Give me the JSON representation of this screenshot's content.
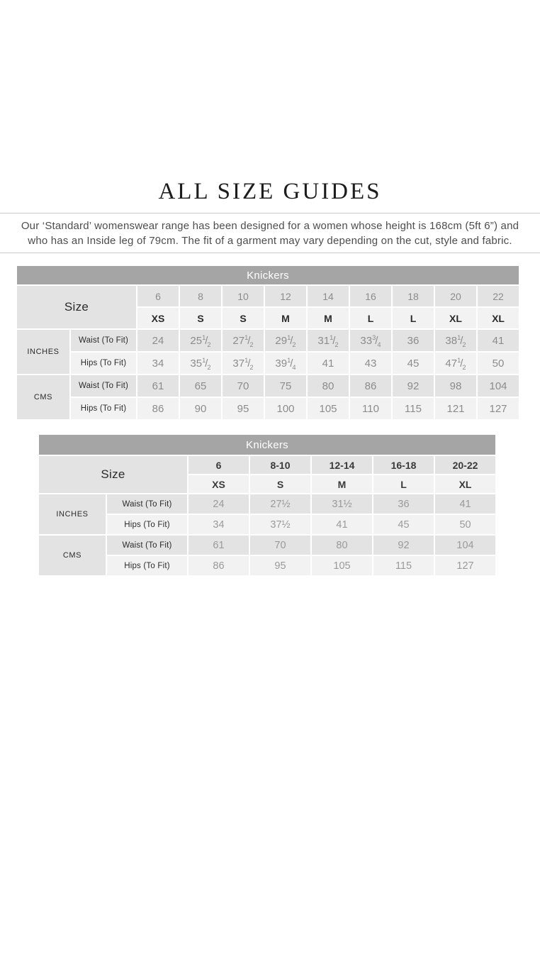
{
  "page": {
    "title": "ALL SIZE GUIDES",
    "intro_line1": "Our ‘Standard’ womenswear range has been designed for a women whose height is 168cm (5ft 6”) and",
    "intro_line2": "who has an Inside leg of 79cm. The fit of a garment may vary depending on the cut, style and fabric."
  },
  "colors": {
    "band_gray": "#a5a5a5",
    "row_gray": "#e3e3e3",
    "row_light": "#f2f2f2",
    "text_dark": "#2b2b2b",
    "text_gray": "#8c8c8c",
    "intro_gray": "#4d4d4d",
    "rule_gray": "#cbcbcb"
  },
  "tables": [
    {
      "title": "Knickers",
      "size_label": "Size",
      "numeric_sizes": [
        "6",
        "8",
        "10",
        "12",
        "14",
        "16",
        "18",
        "20",
        "22"
      ],
      "letter_sizes": [
        "XS",
        "S",
        "S",
        "M",
        "M",
        "L",
        "L",
        "XL",
        "XL"
      ],
      "groups": [
        {
          "unit": "INCHES",
          "rows": [
            {
              "label": "Waist (To Fit)",
              "values": [
                "24",
                "25 1/2",
                "27 1/2",
                "29 1/2",
                "31 1/2",
                "33 3/4",
                "36",
                "38 1/2",
                "41"
              ]
            },
            {
              "label": "Hips (To Fit)",
              "values": [
                "34",
                "35 1/2",
                "37 1/2",
                "39 1/4",
                "41",
                "43",
                "45",
                "47 1/2",
                "50"
              ]
            }
          ]
        },
        {
          "unit": "CMS",
          "rows": [
            {
              "label": "Waist (To Fit)",
              "values": [
                "61",
                "65",
                "70",
                "75",
                "80",
                "86",
                "92",
                "98",
                "104"
              ]
            },
            {
              "label": "Hips (To Fit)",
              "values": [
                "86",
                "90",
                "95",
                "100",
                "105",
                "110",
                "115",
                "121",
                "127"
              ]
            }
          ]
        }
      ]
    },
    {
      "title": "Knickers",
      "size_label": "Size",
      "numeric_sizes": [
        "6",
        "8-10",
        "12-14",
        "16-18",
        "20-22"
      ],
      "letter_sizes": [
        "XS",
        "S",
        "M",
        "L",
        "XL"
      ],
      "groups": [
        {
          "unit": "INCHES",
          "rows": [
            {
              "label": "Waist (To Fit)",
              "values": [
                "24",
                "27½",
                "31½",
                "36",
                "41"
              ]
            },
            {
              "label": "Hips (To Fit)",
              "values": [
                "34",
                "37½",
                "41",
                "45",
                "50"
              ]
            }
          ]
        },
        {
          "unit": "CMS",
          "rows": [
            {
              "label": "Waist (To Fit)",
              "values": [
                "61",
                "70",
                "80",
                "92",
                "104"
              ]
            },
            {
              "label": "Hips (To Fit)",
              "values": [
                "86",
                "95",
                "105",
                "115",
                "127"
              ]
            }
          ]
        }
      ]
    }
  ]
}
